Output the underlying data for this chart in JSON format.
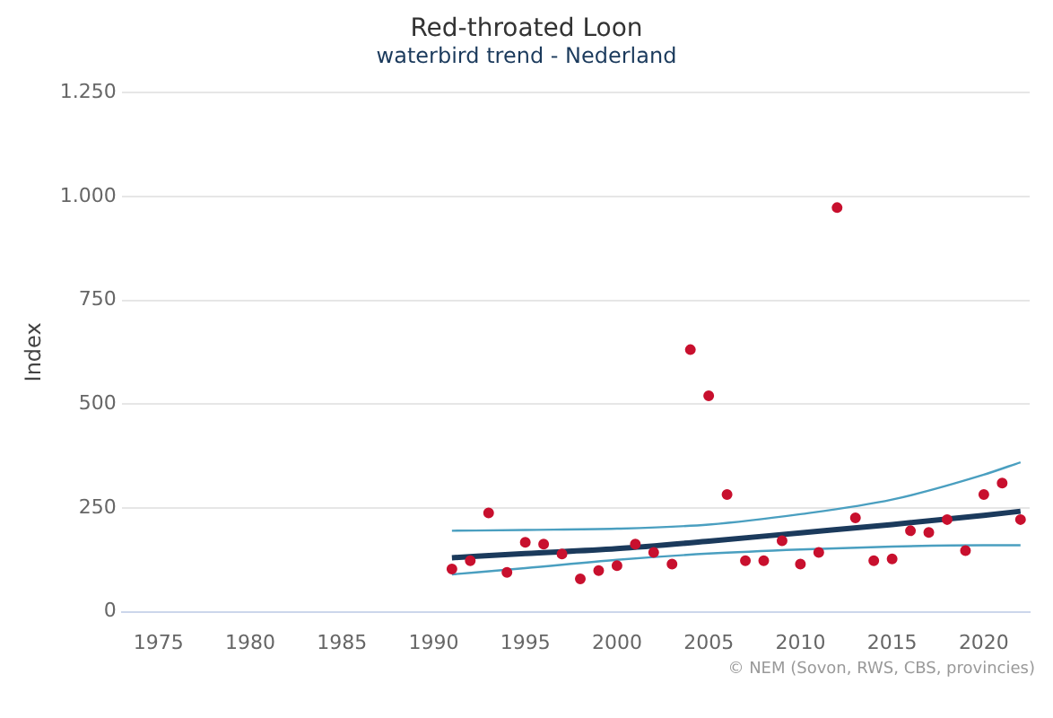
{
  "chart_data": {
    "type": "scatter",
    "title": "Red-throated Loon",
    "subtitle": "waterbird trend - Nederland",
    "ylabel": "Index",
    "annotations": [
      "© NEM (Sovon, RWS, CBS, provincies)"
    ],
    "x": [
      1991,
      1992,
      1993,
      1994,
      1995,
      1996,
      1997,
      1998,
      1999,
      2000,
      2001,
      2002,
      2003,
      2004,
      2005,
      2006,
      2007,
      2008,
      2009,
      2010,
      2011,
      2012,
      2013,
      2014,
      2015,
      2016,
      2017,
      2018,
      2019,
      2020,
      2021,
      2022
    ],
    "series": [
      {
        "type": "scatter",
        "color": "#c8102e",
        "marker": "circle",
        "values": [
          103,
          123,
          238,
          95,
          167,
          163,
          139,
          79,
          99,
          111,
          163,
          143,
          115,
          631,
          520,
          282,
          123,
          123,
          171,
          115,
          143,
          973,
          226,
          123,
          127,
          195,
          191,
          222,
          147,
          282,
          310,
          222
        ]
      },
      {
        "type": "line",
        "color": "#4a9fc0",
        "marker": "none",
        "x": [
          1991,
          1995,
          2000,
          2005,
          2010,
          2015,
          2020,
          2022
        ],
        "values": [
          90,
          105,
          125,
          140,
          150,
          157,
          160,
          160
        ]
      },
      {
        "type": "line",
        "color": "#4a9fc0",
        "marker": "none",
        "x": [
          1991,
          1995,
          2000,
          2005,
          2010,
          2015,
          2020,
          2022
        ],
        "values": [
          195,
          197,
          200,
          210,
          235,
          270,
          330,
          360
        ]
      },
      {
        "type": "line",
        "color": "#1b3a5c",
        "marker": "none",
        "x": [
          1991,
          1995,
          2000,
          2005,
          2010,
          2015,
          2020,
          2022
        ],
        "values": [
          130,
          140,
          152,
          170,
          190,
          210,
          232,
          242
        ]
      }
    ],
    "xlim": [
      1973,
      2022.5
    ],
    "xticks": [
      1975,
      1980,
      1985,
      1990,
      1995,
      2000,
      2005,
      2010,
      2015,
      2020
    ],
    "ylim": [
      0,
      1250
    ],
    "yticks": [
      0,
      {
        "value": 250,
        "label": "250"
      },
      {
        "value": 500,
        "label": "500"
      },
      {
        "value": 750,
        "label": "750"
      },
      {
        "value": 1000,
        "label": "1.000"
      },
      {
        "value": 1250,
        "label": "1.250"
      }
    ],
    "grid": "y",
    "legend": false
  }
}
